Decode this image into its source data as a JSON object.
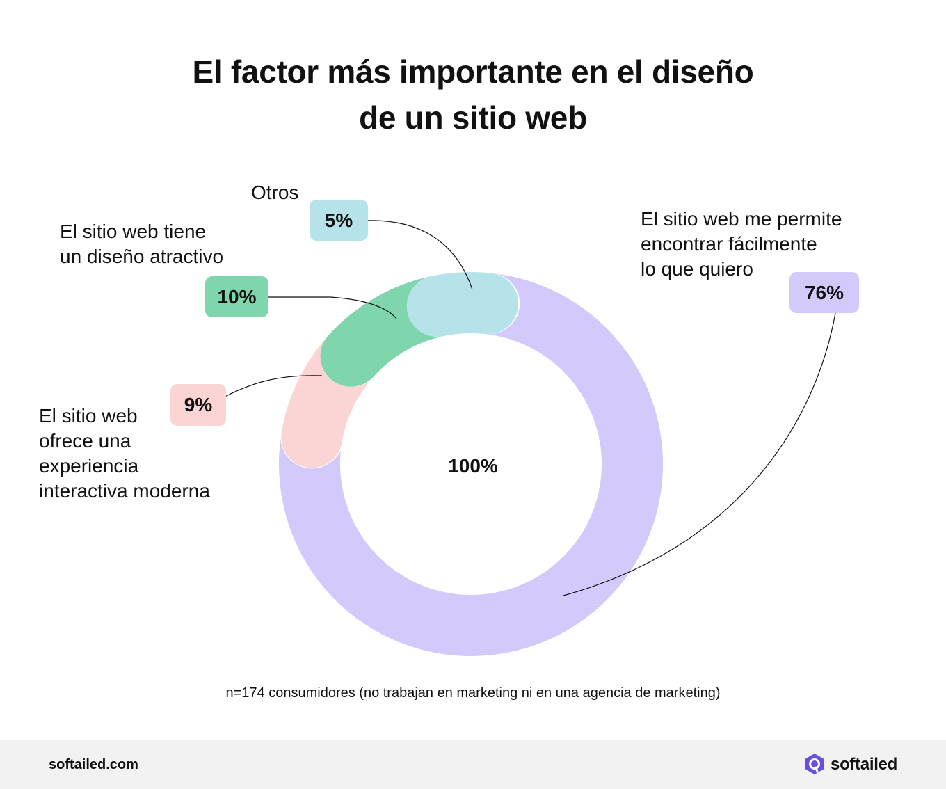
{
  "title": {
    "line1": "El factor más importante en el diseño",
    "line2": "de un sitio web"
  },
  "chart_data": {
    "type": "pie",
    "variant": "donut",
    "title": "El factor más importante en el diseño de un sitio web",
    "center_label": "100%",
    "slices": [
      {
        "label_lines": [
          "El sitio web me permite",
          "encontrar fácilmente",
          "lo que quiero"
        ],
        "value": 76,
        "value_label": "76%",
        "color": "#d3c9fb",
        "badge_color": "#d3c9fb"
      },
      {
        "label_lines": [
          "El sitio web",
          "ofrece una",
          "experiencia",
          "interactiva moderna"
        ],
        "value": 9,
        "value_label": "9%",
        "color": "#fbd5d3",
        "badge_color": "#fbd5d3"
      },
      {
        "label_lines": [
          "El sitio web tiene",
          "un diseño atractivo"
        ],
        "value": 10,
        "value_label": "10%",
        "color": "#7fd6ad",
        "badge_color": "#7fd6ad"
      },
      {
        "label_lines": [
          "Otros"
        ],
        "value": 5,
        "value_label": "5%",
        "color": "#b6e3ea",
        "badge_color": "#b6e3ea"
      }
    ]
  },
  "note": "n=174 consumidores (no trabajan en marketing ni en una agencia de marketing)",
  "footer": {
    "site": "softailed.com",
    "logo_text": "softailed",
    "logo_icon": "softailed-logo-icon",
    "logo_color": "#6b4fe0"
  }
}
